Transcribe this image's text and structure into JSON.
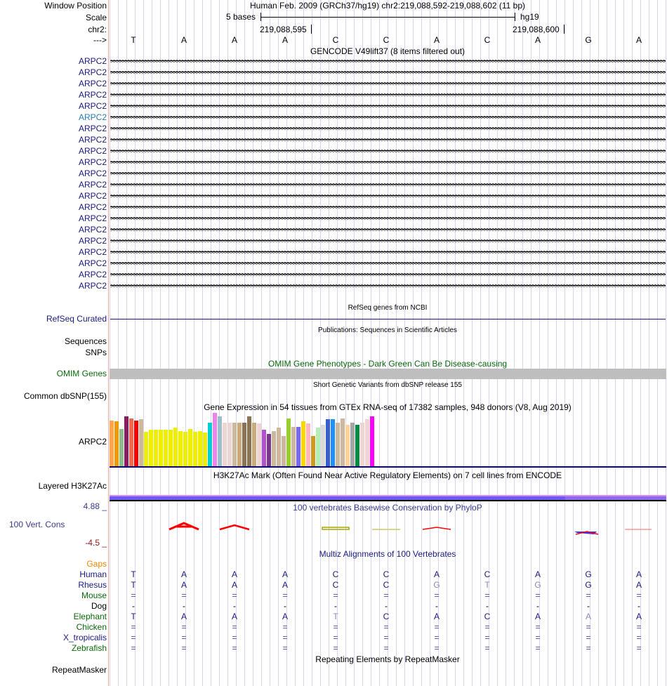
{
  "header": {
    "window_position_label": "Window Position",
    "assembly_position": "Human Feb. 2009 (GRCh37/hg19)   chr2:219,088,592-219,088,602 (11 bp)",
    "scale_label": "Scale",
    "scale_text": "5 bases",
    "scale_db": "hg19",
    "chrom_label": "chr2:",
    "tick1": "219,088,595",
    "tick2": "219,088,600",
    "strand_label": "--->",
    "bases": [
      "T",
      "A",
      "A",
      "A",
      "C",
      "C",
      "A",
      "C",
      "A",
      "G",
      "A"
    ]
  },
  "gencode": {
    "title": "GENCODE V49lift37 (8 items filtered out)",
    "rows": [
      "ARPC2",
      "ARPC2",
      "ARPC2",
      "ARPC2",
      "ARPC2",
      "ARPC2",
      "ARPC2",
      "ARPC2",
      "ARPC2",
      "ARPC2",
      "ARPC2",
      "ARPC2",
      "ARPC2",
      "ARPC2",
      "ARPC2",
      "ARPC2",
      "ARPC2",
      "ARPC2",
      "ARPC2",
      "ARPC2",
      "ARPC2"
    ],
    "highlight_row": 5
  },
  "refseq": {
    "title": "RefSeq genes from NCBI",
    "label": "RefSeq Curated"
  },
  "publications": {
    "title": "Publications: Sequences in Scientific Articles",
    "label1": "Sequences",
    "label2": "SNPs"
  },
  "omim": {
    "title": "OMIM Gene Phenotypes - Dark Green Can Be Disease-causing",
    "label": "OMIM Genes"
  },
  "dbsnp": {
    "title": "Short Genetic Variants from dbSNP release 155",
    "label": "Common dbSNP(155)"
  },
  "gtex": {
    "title": "Gene Expression in 54 tissues from GTEx RNA-seq of 17382 samples, 948 donors (V8, Aug 2019)",
    "label": "ARPC2",
    "relative_levels": [
      0.85,
      0.84,
      0.7,
      0.93,
      0.89,
      0.85,
      0.88,
      0.64,
      0.68,
      0.68,
      0.69,
      0.68,
      0.69,
      0.72,
      0.66,
      0.64,
      0.7,
      0.64,
      0.66,
      0.63,
      0.81,
      0.999,
      0.93,
      0.81,
      0.81,
      0.81,
      0.81,
      0.81,
      0.94,
      0.81,
      0.8,
      0.68,
      0.61,
      0.66,
      0.72,
      0.56,
      0.9,
      0.74,
      0.74,
      0.84,
      0.8,
      0.56,
      0.72,
      0.77,
      0.88,
      0.88,
      0.82,
      0.9,
      0.78,
      0.82,
      0.77,
      0.81,
      0.88,
      0.94
    ],
    "colors": [
      "#FFA54F",
      "#EE9A00",
      "#8FBC8F",
      "#8B1C62",
      "#EE6A50",
      "#FF0000",
      "#CDB79E",
      "#EEEE00",
      "#EEEE00",
      "#EEEE00",
      "#EEEE00",
      "#EEEE00",
      "#EEEE00",
      "#EEEE00",
      "#EEEE00",
      "#EEEE00",
      "#EEEE00",
      "#EEEE00",
      "#EEEE00",
      "#EEEE00",
      "#00CED1",
      "#EE82EE",
      "#9AC0CD",
      "#EED5D2",
      "#EED5D2",
      "#CDB79E",
      "#CDAA7D",
      "#8B7355",
      "#8B7355",
      "#CDAA7D",
      "#EED5D2",
      "#B452CD",
      "#7A378B",
      "#CDB79E",
      "#CDB79E",
      "#CDB79E",
      "#9ACD32",
      "#CDB79E",
      "#7B68EE",
      "#FFD700",
      "#FFB6C1",
      "#CD9B1D",
      "#B4EEB4",
      "#D9D9D9",
      "#3A5FCD",
      "#1E90FF",
      "#CDB79E",
      "#CDB79E",
      "#FFD39B",
      "#A6A6A6",
      "#008B45",
      "#EED5D2",
      "#EED5D2",
      "#FF00FF"
    ]
  },
  "h3k27ac": {
    "title": "H3K27Ac Mark (Often Found Near Active Regulatory Elements) on 7 cell lines from ENCODE",
    "label": "Layered H3K27Ac"
  },
  "phylop": {
    "title": "100 vertebrates Basewise Conservation by PhyloP",
    "label": "100 Vert. Cons",
    "max": "4.88 _",
    "min": "-4.5 _"
  },
  "multiz": {
    "title": "Multiz Alignments of 100 Vertebrates",
    "gaps_label": "Gaps",
    "species": [
      {
        "name": "Human",
        "color": "#1a1a80",
        "bases": [
          "T",
          "A",
          "A",
          "A",
          "C",
          "C",
          "A",
          "C",
          "A",
          "G",
          "A"
        ],
        "mismatch": []
      },
      {
        "name": "Rhesus",
        "color": "#1a1a80",
        "bases": [
          "T",
          "A",
          "A",
          "A",
          "C",
          "C",
          "G",
          "T",
          "G",
          "G",
          "A"
        ],
        "mismatch": [
          6,
          7,
          8
        ]
      },
      {
        "name": "Mouse",
        "color": "#0a6a0a",
        "bases": [
          "=",
          "=",
          "=",
          "=",
          "=",
          "=",
          "=",
          "=",
          "=",
          "=",
          "="
        ],
        "mismatch": []
      },
      {
        "name": "Dog",
        "color": "#000000",
        "bases": [
          "-",
          "-",
          "-",
          "-",
          "-",
          "-",
          "-",
          "-",
          "-",
          "-",
          "-"
        ],
        "mismatch": []
      },
      {
        "name": "Elephant",
        "color": "#0a6a0a",
        "bases": [
          "T",
          "A",
          "A",
          "A",
          "T",
          "C",
          "A",
          "C",
          "A",
          "A",
          "A"
        ],
        "mismatch": [
          4,
          9
        ]
      },
      {
        "name": "Chicken",
        "color": "#0a6a0a",
        "bases": [
          "=",
          "=",
          "=",
          "=",
          "=",
          "=",
          "=",
          "=",
          "=",
          "=",
          "="
        ],
        "mismatch": []
      },
      {
        "name": "X_tropicalis",
        "color": "#1a1a80",
        "bases": [
          "=",
          "=",
          "=",
          "=",
          "=",
          "=",
          "=",
          "=",
          "=",
          "=",
          "="
        ],
        "mismatch": []
      },
      {
        "name": "Zebrafish",
        "color": "#0a6a0a",
        "bases": [
          "=",
          "=",
          "=",
          "=",
          "=",
          "=",
          "=",
          "=",
          "=",
          "=",
          "="
        ],
        "mismatch": []
      }
    ]
  },
  "repeatmasker": {
    "title": "Repeating Elements by RepeatMasker",
    "label": "RepeatMasker"
  }
}
